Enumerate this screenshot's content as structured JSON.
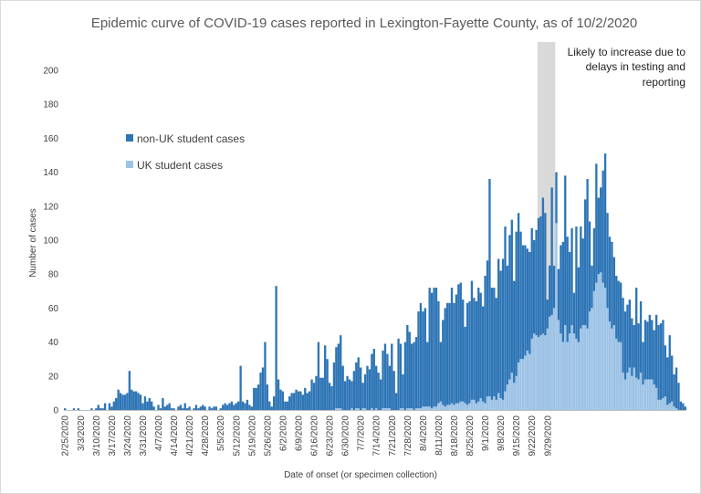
{
  "chart_data": {
    "type": "bar",
    "stacked": true,
    "title": "Epidemic curve of COVID-19 cases reported in Lexington-Fayette County, as of 10/2/2020",
    "xlabel": "Date of onset (or specimen collection)",
    "ylabel": "Number of cases",
    "ylim": [
      0,
      200
    ],
    "yticks": [
      0,
      20,
      40,
      60,
      80,
      100,
      120,
      140,
      160,
      180,
      200
    ],
    "x_start": "2/25/2020",
    "x_tick_labels": [
      "2/25/2020",
      "3/3/2020",
      "3/10/2020",
      "3/17/2020",
      "3/24/2020",
      "3/31/2020",
      "4/7/2020",
      "4/14/2020",
      "4/21/2020",
      "4/28/2020",
      "5/5/2020",
      "5/12/2020",
      "5/19/2020",
      "5/26/2020",
      "6/2/2020",
      "6/9/2020",
      "6/16/2020",
      "6/23/2020",
      "6/30/2020",
      "7/7/2020",
      "7/14/2020",
      "7/21/2020",
      "7/28/2020",
      "8/4/2020",
      "8/11/2020",
      "8/18/2020",
      "8/25/2020",
      "9/1/2020",
      "9/8/2020",
      "9/15/2020",
      "9/22/2020",
      "9/29/2020"
    ],
    "legend_position": "upper-left",
    "grid": false,
    "series": [
      {
        "name": "non-UK student cases",
        "color": "#2e75b6",
        "values": [
          1,
          0,
          0,
          0,
          1,
          0,
          1,
          0,
          0,
          0,
          0,
          0,
          1,
          0,
          1,
          3,
          1,
          1,
          4,
          0,
          4,
          2,
          5,
          7,
          12,
          10,
          9,
          9,
          10,
          23,
          12,
          11,
          11,
          10,
          9,
          4,
          8,
          5,
          7,
          5,
          2,
          0,
          3,
          1,
          7,
          2,
          3,
          4,
          1,
          1,
          0,
          2,
          3,
          1,
          4,
          1,
          2,
          0,
          1,
          3,
          1,
          2,
          3,
          2,
          0,
          2,
          1,
          2,
          2,
          0,
          1,
          3,
          4,
          3,
          4,
          5,
          3,
          4,
          5,
          26,
          5,
          4,
          6,
          3,
          2,
          13,
          13,
          15,
          22,
          25,
          40,
          15,
          5,
          2,
          8,
          73,
          18,
          12,
          11,
          5,
          5,
          8,
          10,
          10,
          12,
          11,
          11,
          9,
          13,
          10,
          11,
          18,
          16,
          20,
          40,
          19,
          19,
          38,
          30,
          16,
          14,
          28,
          36,
          38,
          43,
          26,
          17,
          20,
          18,
          16,
          23,
          27,
          30,
          25,
          15,
          20,
          26,
          24,
          32,
          36,
          25,
          22,
          18,
          34,
          38,
          32,
          25,
          39,
          23,
          10,
          42,
          38,
          20,
          40,
          49,
          45,
          38,
          40,
          42,
          57,
          62,
          56,
          58,
          38,
          70,
          68,
          70,
          70,
          60,
          35,
          50,
          58,
          60,
          60,
          68,
          60,
          64,
          70,
          70,
          60,
          45,
          60,
          60,
          70,
          60,
          60,
          67,
          62,
          56,
          75,
          80,
          128,
          66,
          64,
          60,
          79,
          75,
          83,
          97,
          70,
          85,
          90,
          60,
          85,
          88,
          75,
          67,
          65,
          60,
          60,
          65,
          55,
          62,
          70,
          70,
          80,
          72,
          17,
          30,
          75,
          25,
          30,
          30,
          52,
          59,
          88,
          62,
          48,
          57,
          24,
          66,
          44,
          60,
          51,
          74,
          88,
          53,
          25,
          37,
          70,
          45,
          50,
          66,
          79,
          56,
          50,
          51,
          40,
          37,
          36,
          35,
          44,
          40,
          40,
          40,
          34,
          25,
          53,
          33,
          42,
          25,
          35,
          34,
          38,
          35,
          32,
          43,
          44,
          45,
          46,
          30,
          28,
          40,
          27,
          19,
          24,
          16,
          5,
          4,
          2
        ]
      },
      {
        "name": "UK student cases",
        "color": "#9dc3e6",
        "values": [
          0,
          0,
          0,
          0,
          0,
          0,
          0,
          0,
          0,
          0,
          0,
          0,
          0,
          0,
          0,
          0,
          0,
          0,
          0,
          0,
          0,
          0,
          0,
          0,
          0,
          0,
          0,
          0,
          0,
          0,
          0,
          0,
          0,
          0,
          0,
          0,
          0,
          0,
          0,
          0,
          0,
          0,
          0,
          0,
          0,
          0,
          0,
          0,
          0,
          0,
          0,
          0,
          0,
          0,
          0,
          0,
          0,
          0,
          0,
          0,
          0,
          0,
          0,
          0,
          0,
          0,
          0,
          0,
          0,
          0,
          0,
          0,
          0,
          0,
          0,
          0,
          0,
          0,
          0,
          0,
          0,
          0,
          0,
          0,
          0,
          0,
          0,
          0,
          0,
          0,
          0,
          0,
          0,
          0,
          0,
          0,
          0,
          0,
          0,
          0,
          0,
          0,
          0,
          0,
          0,
          0,
          0,
          0,
          0,
          0,
          0,
          0,
          0,
          0,
          0,
          0,
          0,
          0,
          0,
          0,
          0,
          0,
          1,
          1,
          1,
          0,
          0,
          0,
          0,
          1,
          0,
          1,
          1,
          0,
          1,
          1,
          0,
          0,
          1,
          0,
          1,
          0,
          0,
          1,
          1,
          1,
          1,
          0,
          0,
          0,
          0,
          1,
          1,
          0,
          1,
          1,
          1,
          0,
          1,
          1,
          1,
          2,
          2,
          2,
          2,
          1,
          2,
          2,
          4,
          5,
          3,
          2,
          3,
          3,
          4,
          3,
          4,
          4,
          5,
          5,
          4,
          3,
          4,
          6,
          6,
          4,
          5,
          7,
          5,
          4,
          8,
          8,
          6,
          8,
          6,
          10,
          7,
          6,
          11,
          15,
          18,
          22,
          16,
          20,
          28,
          30,
          30,
          32,
          35,
          33,
          42,
          45,
          44,
          43,
          44,
          45,
          44,
          48,
          55,
          56,
          60,
          110,
          53,
          45,
          40,
          50,
          40,
          45,
          50,
          45,
          42,
          40,
          48,
          50,
          50,
          48,
          58,
          60,
          70,
          75,
          80,
          81,
          75,
          72,
          60,
          52,
          48,
          50,
          42,
          40,
          40,
          22,
          18,
          22,
          25,
          20,
          25,
          19,
          18,
          22,
          15,
          18,
          18,
          18,
          18,
          15,
          13,
          6,
          6,
          7,
          8,
          3,
          4,
          5,
          2,
          1
        ]
      }
    ],
    "annotation": {
      "lines": [
        "Likely to increase due to",
        "delays in testing and",
        "reporting"
      ],
      "shade_from": "9/25/2020",
      "shade_to": "10/2/2020",
      "shade_color": "#d9d9d9"
    }
  }
}
